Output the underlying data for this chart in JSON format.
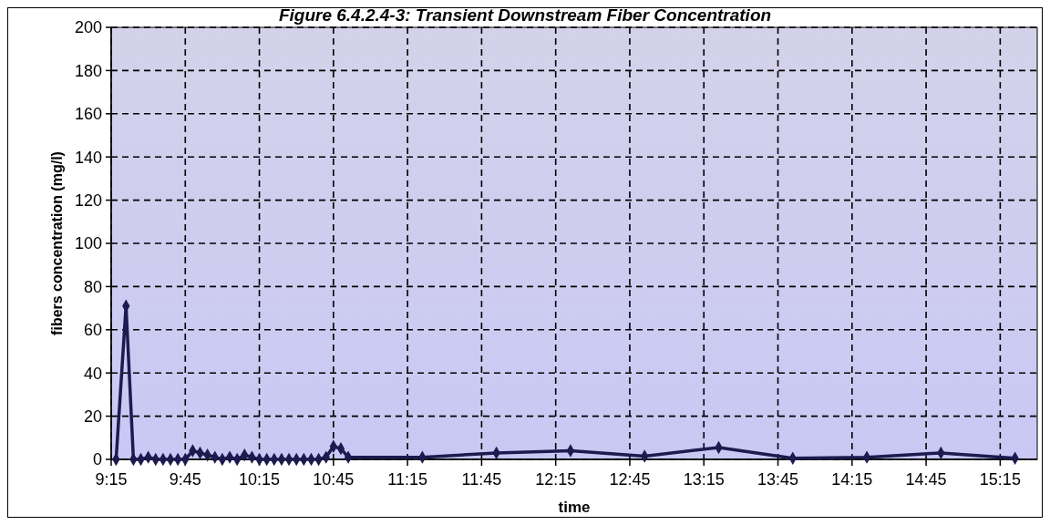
{
  "chart_data": {
    "type": "line",
    "title": "Figure 6.4.2.4-3: Transient Downstream Fiber Concentration",
    "xlabel": "time",
    "ylabel": "fibers concentration (mg/l)",
    "x": [
      9.283,
      9.35,
      9.4,
      9.45,
      9.5,
      9.55,
      9.6,
      9.65,
      9.7,
      9.75,
      9.8,
      9.85,
      9.9,
      9.95,
      10,
      10.05,
      10.1,
      10.15,
      10.2,
      10.25,
      10.3,
      10.35,
      10.4,
      10.45,
      10.5,
      10.55,
      10.6,
      10.65,
      10.7,
      10.75,
      10.8,
      10.85,
      11.35,
      11.85,
      12.35,
      12.85,
      13.35,
      13.85,
      14.35,
      14.85,
      15.35
    ],
    "series": [
      {
        "color": "#1c1a4f",
        "values": [
          0,
          71,
          0,
          0,
          1,
          0,
          0,
          0,
          0,
          0,
          4,
          3,
          2,
          1,
          0,
          1,
          0,
          2,
          1,
          0,
          0,
          0,
          0,
          0,
          0,
          0,
          0,
          0,
          1,
          6,
          5,
          1,
          1,
          3,
          4,
          1.5,
          5.5,
          0.5,
          1,
          3,
          0.5
        ]
      }
    ],
    "xlim": [
      9.25,
      15.5
    ],
    "xticks": [
      {
        "value": 9.25,
        "label": "9:15"
      },
      {
        "value": 9.75,
        "label": "9:45"
      },
      {
        "value": 10.25,
        "label": "10:15"
      },
      {
        "value": 10.75,
        "label": "10:45"
      },
      {
        "value": 11.25,
        "label": "11:15"
      },
      {
        "value": 11.75,
        "label": "11:45"
      },
      {
        "value": 12.25,
        "label": "12:15"
      },
      {
        "value": 12.75,
        "label": "12:45"
      },
      {
        "value": 13.25,
        "label": "13:15"
      },
      {
        "value": 13.75,
        "label": "13:45"
      },
      {
        "value": 14.25,
        "label": "14:15"
      },
      {
        "value": 14.75,
        "label": "14:45"
      },
      {
        "value": 15.25,
        "label": "15:15"
      }
    ],
    "ylim": [
      0,
      200
    ],
    "yticks": [
      0,
      20,
      40,
      60,
      80,
      100,
      120,
      140,
      160,
      180,
      200
    ],
    "grid": true,
    "marker": "diamond",
    "line_style": "solid"
  }
}
